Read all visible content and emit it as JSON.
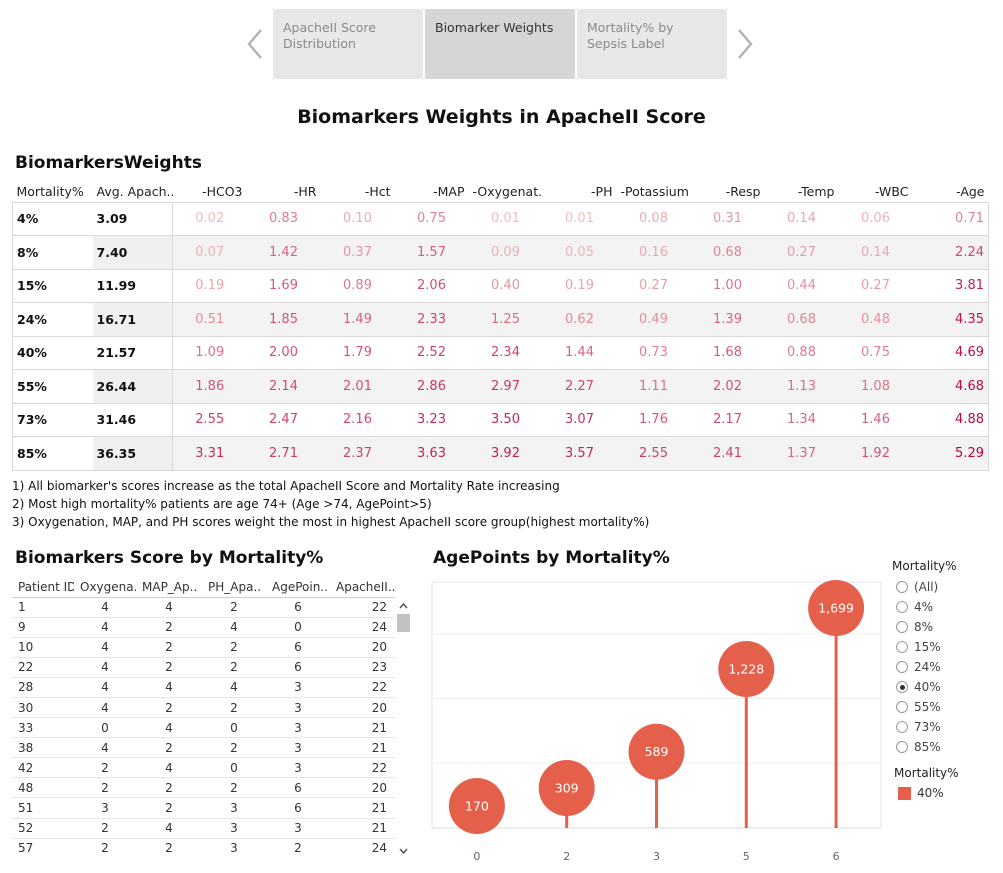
{
  "story": {
    "tabs": [
      {
        "label": "ApacheII Score Distribution",
        "active": false
      },
      {
        "label": "Biomarker Weights",
        "active": true
      },
      {
        "label": "Mortality% by Sepsis Label",
        "active": false
      }
    ],
    "prev_icon": "chevron-left-icon",
    "next_icon": "chevron-right-icon"
  },
  "dashboard_title": "Biomarkers Weights in ApacheII Score",
  "weights_table": {
    "title": "BiomarkersWeights",
    "headers": [
      "Mortality%",
      "Avg. Apach..",
      "-HCO3",
      "-HR",
      "-Hct",
      "-MAP",
      "-Oxygenat..",
      "-PH",
      "-Potassium",
      "-Resp",
      "-Temp",
      "-WBC",
      "-Age"
    ],
    "rows": [
      {
        "mortality": "4%",
        "avg": "3.09",
        "weights": [
          "0.02",
          "0.83",
          "0.10",
          "0.75",
          "0.01",
          "0.01",
          "0.08",
          "0.31",
          "0.14",
          "0.06",
          "0.71"
        ]
      },
      {
        "mortality": "8%",
        "avg": "7.40",
        "weights": [
          "0.07",
          "1.42",
          "0.37",
          "1.57",
          "0.09",
          "0.05",
          "0.16",
          "0.68",
          "0.27",
          "0.14",
          "2.24"
        ]
      },
      {
        "mortality": "15%",
        "avg": "11.99",
        "weights": [
          "0.19",
          "1.69",
          "0.89",
          "2.06",
          "0.40",
          "0.19",
          "0.27",
          "1.00",
          "0.44",
          "0.27",
          "3.81"
        ]
      },
      {
        "mortality": "24%",
        "avg": "16.71",
        "weights": [
          "0.51",
          "1.85",
          "1.49",
          "2.33",
          "1.25",
          "0.62",
          "0.49",
          "1.39",
          "0.68",
          "0.48",
          "4.35"
        ]
      },
      {
        "mortality": "40%",
        "avg": "21.57",
        "weights": [
          "1.09",
          "2.00",
          "1.79",
          "2.52",
          "2.34",
          "1.44",
          "0.73",
          "1.68",
          "0.88",
          "0.75",
          "4.69"
        ]
      },
      {
        "mortality": "55%",
        "avg": "26.44",
        "weights": [
          "1.86",
          "2.14",
          "2.01",
          "2.86",
          "2.97",
          "2.27",
          "1.11",
          "2.02",
          "1.13",
          "1.08",
          "4.68"
        ]
      },
      {
        "mortality": "73%",
        "avg": "31.46",
        "weights": [
          "2.55",
          "2.47",
          "2.16",
          "3.23",
          "3.50",
          "3.07",
          "1.76",
          "2.17",
          "1.34",
          "1.46",
          "4.88"
        ]
      },
      {
        "mortality": "85%",
        "avg": "36.35",
        "weights": [
          "3.31",
          "2.71",
          "2.37",
          "3.63",
          "3.92",
          "3.57",
          "2.55",
          "2.41",
          "1.37",
          "1.92",
          "5.29"
        ]
      }
    ],
    "color_scale": {
      "low": "#f4c2c2",
      "high": "#b8003a"
    }
  },
  "notes": [
    "1) All biomarker's scores increase as the total ApacheII Score and Mortality Rate increasing",
    "2) Most high mortality% patients are age 74+ (Age >74, AgePoint>5)",
    "3) Oxygenation, MAP, and PH scores weight the most in highest ApacheII score group(highest mortality%)"
  ],
  "score_table": {
    "title": "Biomarkers Score by Mortality%",
    "headers": [
      "Patient ID",
      "Oxygena..",
      "MAP_Ap..",
      "PH_Apa..",
      "AgePoin..",
      "ApacheII.."
    ],
    "rows": [
      [
        "1",
        "4",
        "4",
        "2",
        "6",
        "22"
      ],
      [
        "9",
        "4",
        "2",
        "4",
        "0",
        "24"
      ],
      [
        "10",
        "4",
        "2",
        "2",
        "6",
        "20"
      ],
      [
        "22",
        "4",
        "2",
        "2",
        "6",
        "23"
      ],
      [
        "28",
        "4",
        "4",
        "4",
        "3",
        "22"
      ],
      [
        "30",
        "4",
        "2",
        "2",
        "3",
        "20"
      ],
      [
        "33",
        "0",
        "4",
        "0",
        "3",
        "21"
      ],
      [
        "38",
        "4",
        "2",
        "2",
        "3",
        "21"
      ],
      [
        "42",
        "2",
        "4",
        "0",
        "3",
        "22"
      ],
      [
        "48",
        "2",
        "2",
        "2",
        "6",
        "20"
      ],
      [
        "51",
        "3",
        "2",
        "3",
        "6",
        "21"
      ],
      [
        "52",
        "2",
        "4",
        "3",
        "3",
        "21"
      ],
      [
        "57",
        "2",
        "2",
        "3",
        "2",
        "24"
      ]
    ],
    "scroll_up_icon": "chevron-up-icon",
    "scroll_down_icon": "chevron-down-icon"
  },
  "chart_data": {
    "type": "scatter",
    "title": "AgePoints by Mortality%",
    "xlabel": "",
    "ylabel": "",
    "categories": [
      "0",
      "2",
      "3",
      "5",
      "6"
    ],
    "values": [
      170,
      309,
      589,
      1228,
      1699
    ],
    "value_labels": [
      "170",
      "309",
      "589",
      "1,228",
      "1,699"
    ],
    "ylim": [
      0,
      1900
    ],
    "grid": true,
    "color": "#e4604a"
  },
  "filter": {
    "title": "Mortality%",
    "options": [
      "(All)",
      "4%",
      "8%",
      "15%",
      "24%",
      "40%",
      "55%",
      "73%",
      "85%"
    ],
    "selected": "40%"
  },
  "legend": {
    "title": "Mortality%",
    "item": "40%",
    "color": "#e4604a"
  }
}
